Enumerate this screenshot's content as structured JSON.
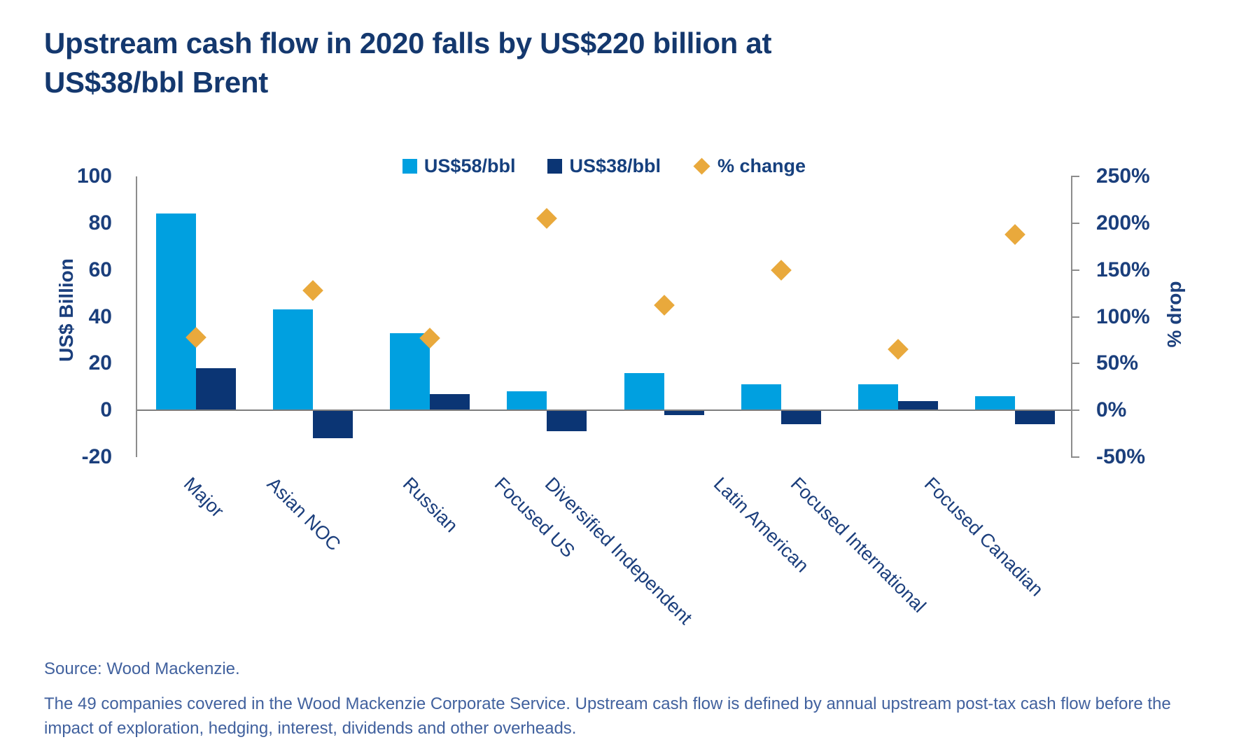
{
  "title": {
    "lines": [
      "Upstream cash flow in 2020 falls by US$220 billion at",
      "US$38/bbl Brent"
    ]
  },
  "legend": {
    "items": [
      {
        "label": "US$58/bbl",
        "marker": "square",
        "color": "#00A0E0"
      },
      {
        "label": "US$38/bbl",
        "marker": "square",
        "color": "#0B3574"
      },
      {
        "label": "% change",
        "marker": "diamond",
        "color": "#E9A93C"
      }
    ]
  },
  "chart_data": {
    "type": "bar",
    "subtype": "grouped bars with diamond scatter overlay on secondary axis",
    "categories": [
      "Major",
      "Asian NOC",
      "Russian",
      "Focused US",
      "Diversified Independent",
      "Latin American",
      "Focused International",
      "Focused Canadian"
    ],
    "series": [
      {
        "name": "US$58/bbl",
        "type": "bar",
        "axis": "left",
        "color": "#00A0E0",
        "values": [
          84,
          43,
          33,
          8,
          16,
          11,
          11,
          6
        ]
      },
      {
        "name": "US$38/bbl",
        "type": "bar",
        "axis": "left",
        "color": "#0B3574",
        "values": [
          18,
          -12,
          7,
          -9,
          -2,
          -6,
          4,
          -6
        ]
      },
      {
        "name": "% change",
        "type": "scatter",
        "axis": "right",
        "color": "#E9A93C",
        "values": [
          78,
          128,
          77,
          205,
          112,
          150,
          65,
          188
        ]
      }
    ],
    "left_axis": {
      "label": "US$ Billion",
      "min": -20,
      "max": 100,
      "ticks": [
        "100",
        "80",
        "60",
        "40",
        "20",
        "0",
        "-20"
      ]
    },
    "right_axis": {
      "label": "% drop",
      "min": -50,
      "max": 250,
      "ticks": [
        "250%",
        "200%",
        "150%",
        "100%",
        "50%",
        "0%",
        "-50%"
      ]
    },
    "grid": false,
    "legend_position": "top-center",
    "title": "Upstream cash flow in 2020 falls by US$220 billion at US$38/bbl Brent"
  },
  "footer": {
    "source": "Source: Wood Mackenzie.",
    "note": "The 49 companies covered in the Wood Mackenzie Corporate Service. Upstream cash flow is defined by annual upstream post-tax cash flow before the impact of exploration, hedging, interest, dividends and other overheads."
  }
}
